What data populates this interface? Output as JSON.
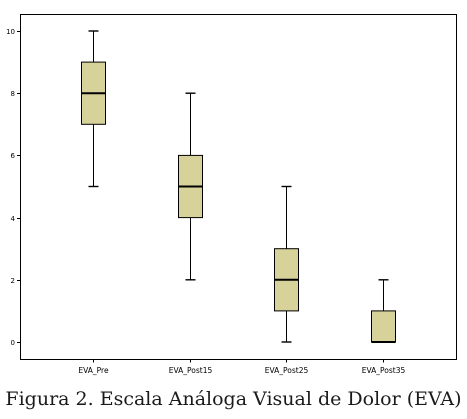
{
  "chart_data": {
    "type": "boxplot",
    "title": "",
    "xlabel": "",
    "ylabel": "",
    "ylim": [
      0,
      10
    ],
    "yticks": [
      0,
      2,
      4,
      6,
      8,
      10
    ],
    "grid": false,
    "legend": "none",
    "colors": {
      "box_fill": "#d7d29a",
      "box_edge": "#000000",
      "median": "#000000",
      "frame": "#000000",
      "background": "#ffffff"
    },
    "categories": [
      "EVA_Pre",
      "EVA_Post15",
      "EVA_Post25",
      "EVA_Post35"
    ],
    "boxes": [
      {
        "category": "EVA_Pre",
        "min": 5,
        "q1": 7,
        "median": 8,
        "q3": 9,
        "max": 10
      },
      {
        "category": "EVA_Post15",
        "min": 2,
        "q1": 4,
        "median": 5,
        "q3": 6,
        "max": 8
      },
      {
        "category": "EVA_Post25",
        "min": 0,
        "q1": 1,
        "median": 2,
        "q3": 3,
        "max": 5
      },
      {
        "category": "EVA_Post35",
        "min": 0,
        "q1": 0,
        "median": 0,
        "q3": 1,
        "max": 2
      }
    ]
  },
  "caption": "Figura 2. Escala Análoga Visual de Dolor (EVA)"
}
